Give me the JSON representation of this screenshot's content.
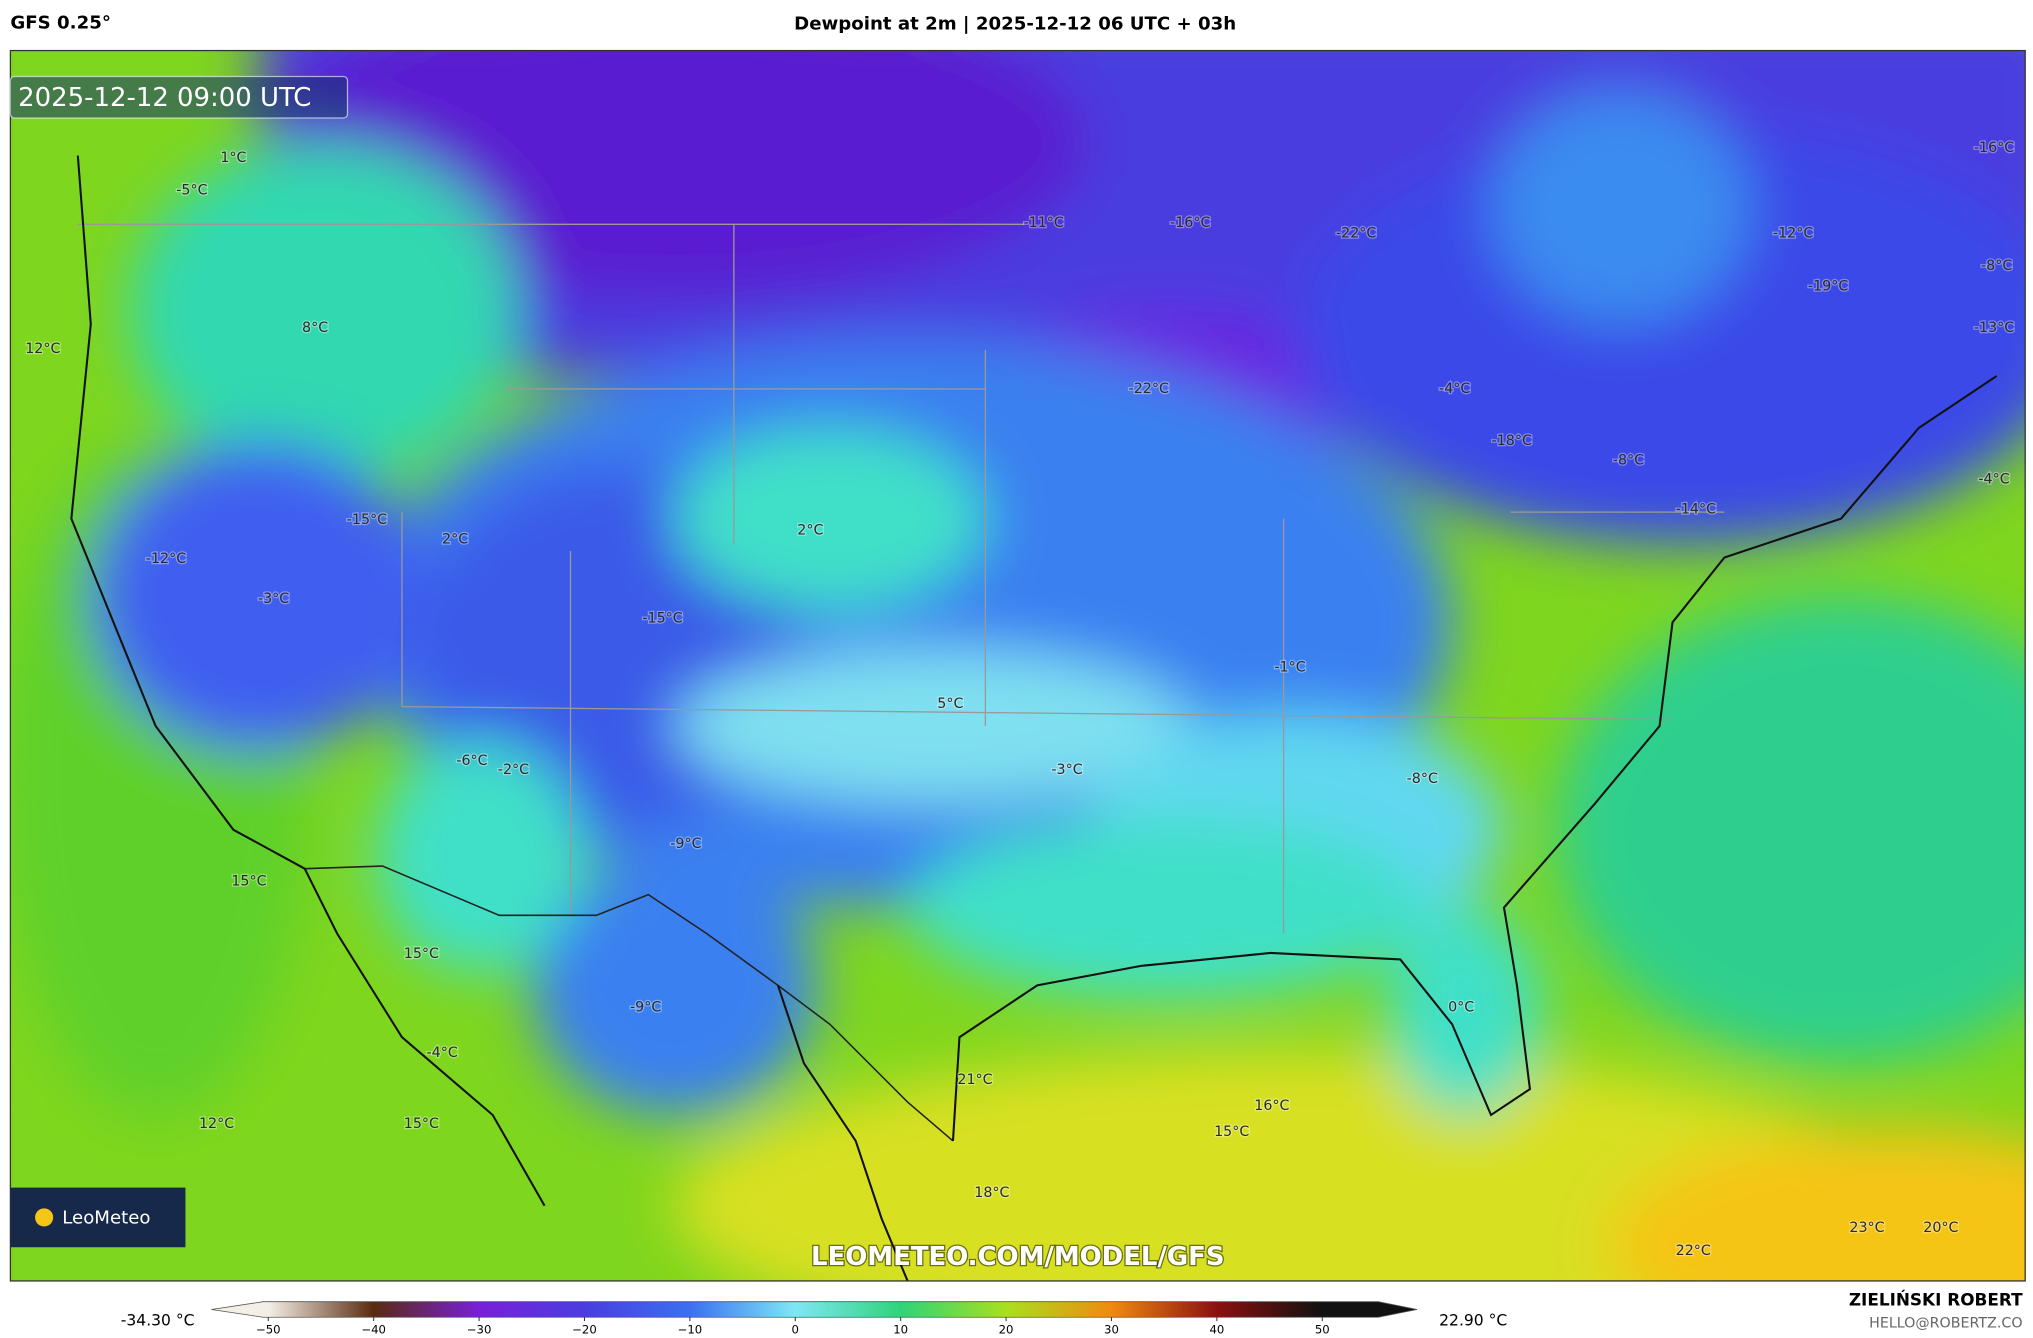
{
  "header": {
    "model": "GFS 0.25°",
    "title": "Dewpoint at 2m | 2025-12-12 06 UTC + 03h"
  },
  "map": {
    "timestamp": "2025-12-12 09:00 UTC",
    "watermark": "LEOMETEO.COM/MODEL/GFS",
    "logo": "LeoMeteo",
    "labels": [
      "1°C",
      "-5°C",
      "12°C",
      "8°C",
      "-11°C",
      "-16°C",
      "-22°C",
      "-16°C",
      "-12°C",
      "-8°C",
      "-19°C",
      "-13°C",
      "-22°C",
      "-4°C",
      "-18°C",
      "-8°C",
      "-4°C",
      "-14°C",
      "-15°C",
      "2°C",
      "-12°C",
      "2°C",
      "-3°C",
      "-15°C",
      "-1°C",
      "5°C",
      "-6°C",
      "-2°C",
      "-3°C",
      "-8°C",
      "-9°C",
      "15°C",
      "15°C",
      "-9°C",
      "0°C",
      "-4°C",
      "21°C",
      "16°C",
      "15°C",
      "12°C",
      "15°C",
      "18°C",
      "22°C",
      "23°C",
      "20°C"
    ]
  },
  "colorbar": {
    "min_label": "-34.30 °C",
    "max_label": "22.90 °C",
    "xlim": [
      -55.4,
      59
    ],
    "ticks": [
      {
        "value": -50,
        "label": "−50"
      },
      {
        "value": -40,
        "label": "−40"
      },
      {
        "value": -30,
        "label": "−30"
      },
      {
        "value": -20,
        "label": "−20"
      },
      {
        "value": -10,
        "label": "−10"
      },
      0,
      10,
      20,
      30,
      40,
      50
    ],
    "colors": [
      "#f4efe6",
      "#5a2a10",
      "#7a1fd8",
      "#4a3de0",
      "#3a70f0",
      "#7fe6f5",
      "#2fd37a",
      "#a8e01e",
      "#f08a10",
      "#8a1010",
      "#111111"
    ]
  },
  "footer": {
    "author": "ZIELIŃSKI ROBERT",
    "email": "HELLO@ROBERTZ.CO"
  }
}
